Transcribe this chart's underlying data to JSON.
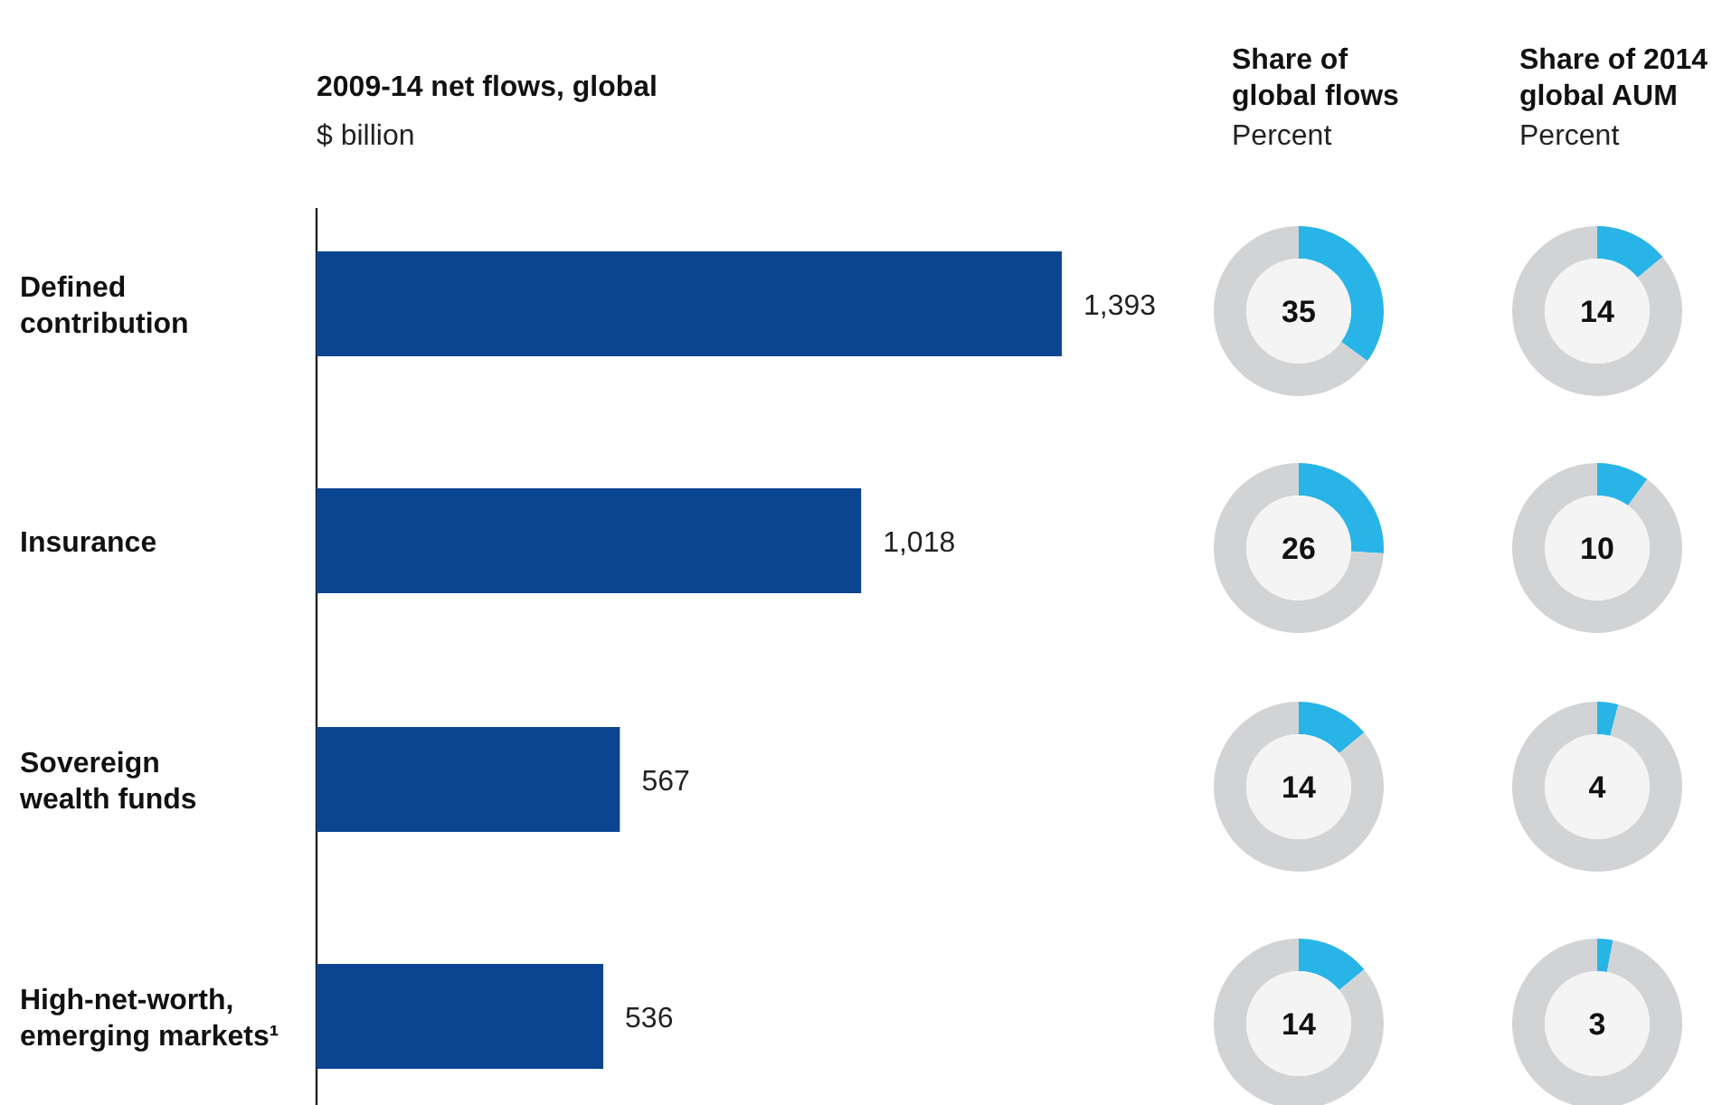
{
  "chart_data": [
    {
      "type": "bar",
      "orientation": "horizontal",
      "title": "2009-14 net flows, global",
      "subtitle": "$ billion",
      "categories": [
        "Defined contribution",
        "Insurance",
        "Sovereign wealth funds",
        "High-net-worth, emerging markets¹"
      ],
      "values": [
        1393,
        1018,
        567,
        536
      ],
      "color": "#0b4592",
      "value_labels": [
        "1,393",
        "1,018",
        "567",
        "536"
      ]
    },
    {
      "type": "donut",
      "title": "Share of global flows",
      "subtitle": "Percent",
      "categories": [
        null,
        null
      ],
      "values": [
        35,
        65
      ],
      "colors": [
        "#29b4e8",
        "#d2d3d5"
      ],
      "annotations": [
        "35"
      ]
    },
    {
      "type": "donut",
      "categories": [
        null,
        null
      ],
      "values": [
        26,
        74
      ],
      "colors": [
        "#29b4e8",
        "#d2d3d5"
      ],
      "annotations": [
        "26"
      ]
    },
    {
      "type": "donut",
      "categories": [
        null,
        null
      ],
      "values": [
        14,
        86
      ],
      "colors": [
        "#29b4e8",
        "#d2d3d5"
      ],
      "annotations": [
        "14"
      ]
    },
    {
      "type": "donut",
      "categories": [
        null,
        null
      ],
      "values": [
        14,
        86
      ],
      "colors": [
        "#29b4e8",
        "#d2d3d5"
      ],
      "annotations": [
        "14"
      ]
    },
    {
      "type": "donut",
      "title": "Share of 2014 global AUM",
      "subtitle": "Percent",
      "categories": [
        null,
        null
      ],
      "values": [
        14,
        86
      ],
      "colors": [
        "#29b4e8",
        "#d2d3d5"
      ],
      "annotations": [
        "14"
      ]
    },
    {
      "type": "donut",
      "categories": [
        null,
        null
      ],
      "values": [
        10,
        90
      ],
      "colors": [
        "#29b4e8",
        "#d2d3d5"
      ],
      "annotations": [
        "10"
      ]
    },
    {
      "type": "donut",
      "categories": [
        null,
        null
      ],
      "values": [
        4,
        96
      ],
      "colors": [
        "#29b4e8",
        "#d2d3d5"
      ],
      "annotations": [
        "4"
      ]
    },
    {
      "type": "donut",
      "categories": [
        null,
        null
      ],
      "values": [
        3,
        97
      ],
      "colors": [
        "#29b4e8",
        "#d2d3d5"
      ],
      "annotations": [
        "3"
      ]
    }
  ]
}
